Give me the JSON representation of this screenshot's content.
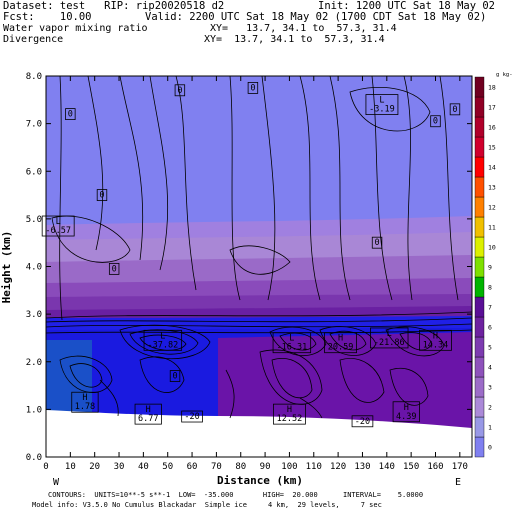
{
  "header": {
    "dataset": "Dataset: test   RIP: rip20020518 d2",
    "init": "Init: 1200 UTC Sat 18 May 02",
    "fcst": "Fcst:    10.00",
    "valid": "Valid: 2200 UTC Sat 18 May 02 (1700 CDT Sat 18 May 02)",
    "field1": "Water vapor mixing ratio",
    "xy1": "XY=   13.7, 34.1 to  57.3, 31.4",
    "field2": "Divergence",
    "xy2": "XY=  13.7, 34.1 to  57.3, 31.4"
  },
  "footer": {
    "contours": "CONTOURS:  UNITS=10**-5 s**-1  LOW=  -35.000       HIGH=  20.000      INTERVAL=    5.0000",
    "model": "Model info: V3.5.0 No Cumulus Blackadar  Simple ice     4 km,  29 levels,     7 sec"
  },
  "chart_data": {
    "type": "heatmap",
    "xlabel": "Distance (km)",
    "ylabel": "Height (km)",
    "xlim": [
      0,
      175
    ],
    "ylim": [
      0,
      8
    ],
    "xticks": [
      0,
      10,
      20,
      30,
      40,
      50,
      60,
      70,
      80,
      90,
      100,
      110,
      120,
      130,
      140,
      150,
      160,
      170
    ],
    "yticks": [
      "0.0",
      "1.0",
      "2.0",
      "3.0",
      "4.0",
      "5.0",
      "6.0",
      "7.0",
      "8.0"
    ],
    "x_end_labels": {
      "left": "W",
      "right": "E"
    },
    "colorbar": {
      "unit": "g kg-1",
      "values": [
        0,
        1,
        2,
        3,
        4,
        5,
        6,
        7,
        8,
        9,
        10,
        11,
        12,
        13,
        14,
        15,
        16,
        17,
        18
      ],
      "colors": [
        "#8080f0",
        "#9898e6",
        "#ab89d8",
        "#9c6cc8",
        "#8e52bb",
        "#7d3bb0",
        "#6e22a0",
        "#5a0f96",
        "#00b400",
        "#7ee000",
        "#dcf000",
        "#f0c000",
        "#ff8000",
        "#ff5000",
        "#ff0000",
        "#d0002d",
        "#b0002a",
        "#900025",
        "#700020"
      ]
    },
    "annotations": [
      {
        "label": "0",
        "x": 10,
        "y": 7.2
      },
      {
        "label": "0",
        "x": 55,
        "y": 7.7
      },
      {
        "label": "0",
        "x": 85,
        "y": 7.75
      },
      {
        "label": "L\n-3.19",
        "x": 138,
        "y": 7.4
      },
      {
        "label": "0",
        "x": 160,
        "y": 7.05
      },
      {
        "label": "0",
        "x": 168,
        "y": 7.3
      },
      {
        "label": "0",
        "x": 23,
        "y": 5.5
      },
      {
        "label": "L\n-6.57",
        "x": 5,
        "y": 4.85
      },
      {
        "label": "0",
        "x": 136,
        "y": 4.5
      },
      {
        "label": "0",
        "x": 28,
        "y": 3.95
      },
      {
        "label": "L\n-37.82",
        "x": 48,
        "y": 2.45
      },
      {
        "label": "L\n-16.31",
        "x": 101,
        "y": 2.4
      },
      {
        "label": "H\n20.59",
        "x": 121,
        "y": 2.4
      },
      {
        "label": "L\n-21.86",
        "x": 141,
        "y": 2.5
      },
      {
        "label": "H\n14.34",
        "x": 160,
        "y": 2.45
      },
      {
        "label": "0",
        "x": 53,
        "y": 1.7
      },
      {
        "label": "H\n1.78",
        "x": 16,
        "y": 1.15
      },
      {
        "label": "H\n6.77",
        "x": 42,
        "y": 0.9
      },
      {
        "label": "-20",
        "x": 60,
        "y": 0.85
      },
      {
        "label": "H\n12.52",
        "x": 100,
        "y": 0.9
      },
      {
        "label": "-20",
        "x": 130,
        "y": 0.75
      },
      {
        "label": "H\n4.39",
        "x": 148,
        "y": 0.95
      }
    ]
  }
}
